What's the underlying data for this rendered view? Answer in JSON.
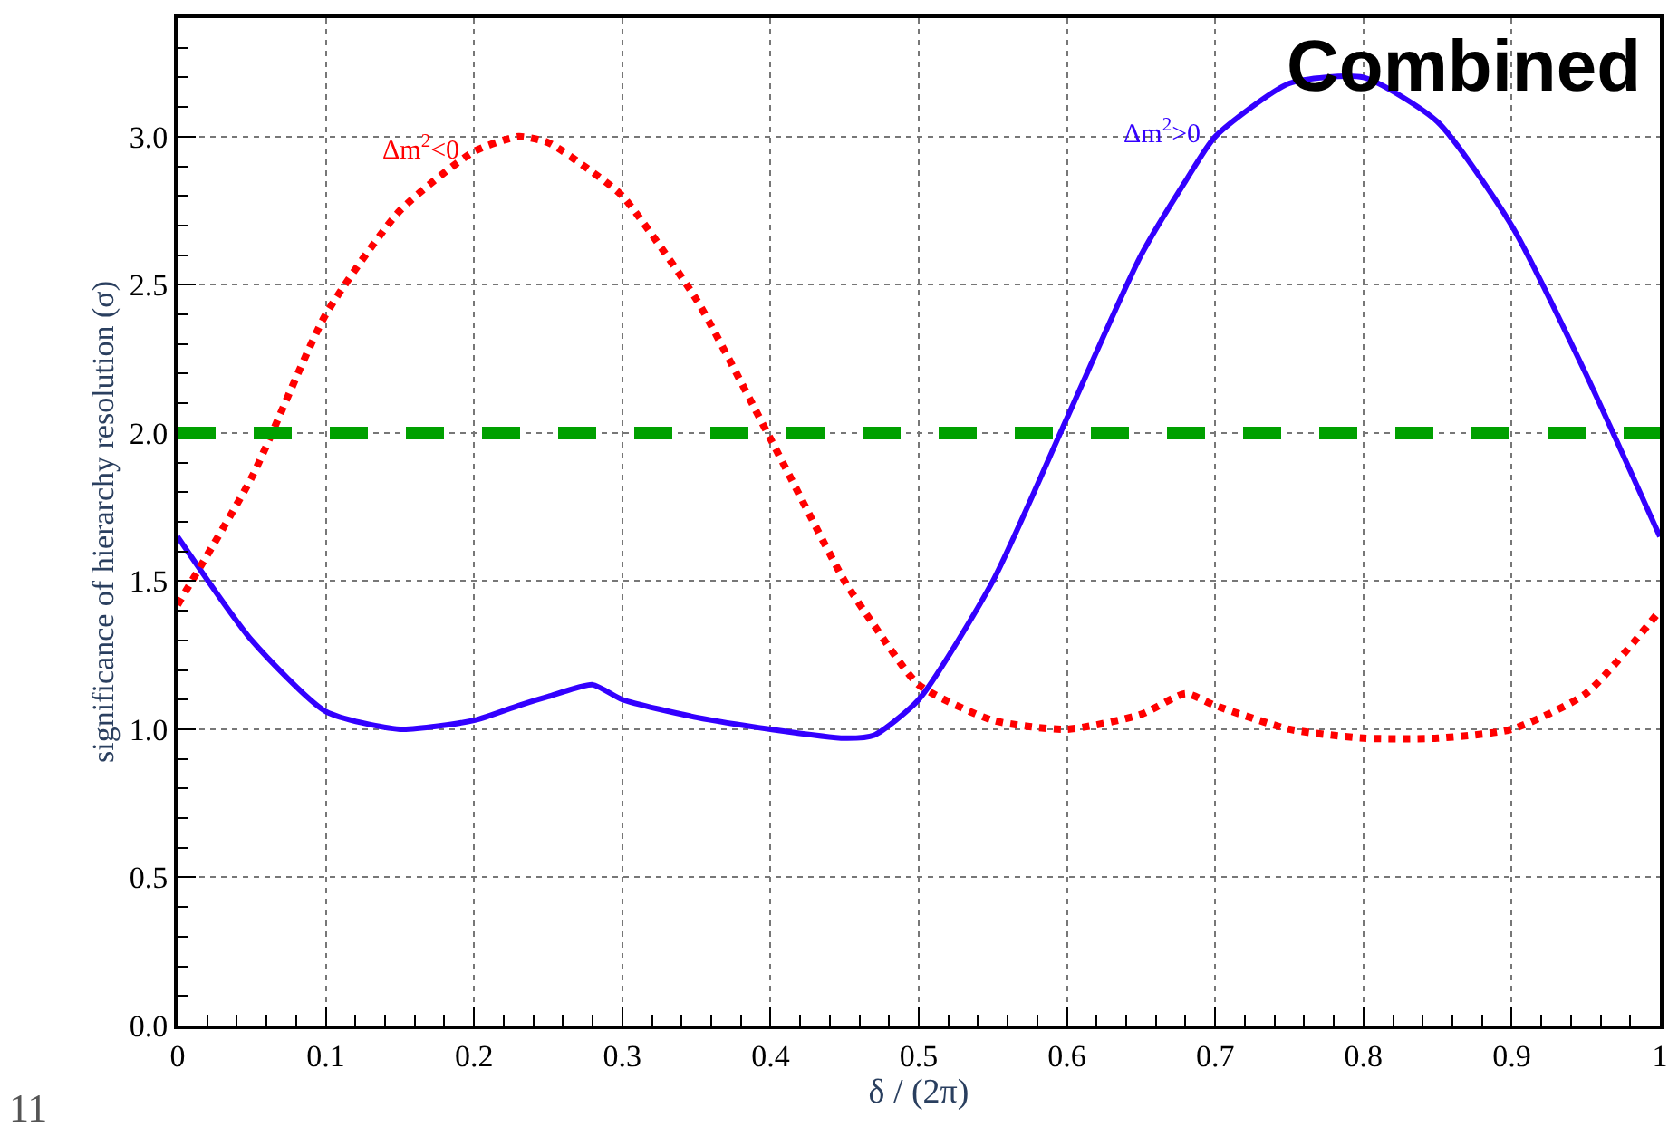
{
  "chart_data": {
    "type": "line",
    "xlabel": "δ / (2π)",
    "ylabel": "significance of hierarchy resolution (σ)",
    "x": [
      0,
      0.05,
      0.1,
      0.15,
      0.2,
      0.23,
      0.25,
      0.28,
      0.3,
      0.35,
      0.4,
      0.45,
      0.47,
      0.5,
      0.55,
      0.6,
      0.65,
      0.68,
      0.7,
      0.75,
      0.8,
      0.85,
      0.9,
      0.95,
      1.0
    ],
    "series": [
      {
        "name": "Δm$^{2}$>0",
        "color": "#3300ff",
        "line_style": "solid",
        "values": [
          1.65,
          1.3,
          1.06,
          1.0,
          1.03,
          1.08,
          1.11,
          1.15,
          1.1,
          1.04,
          1.0,
          0.97,
          0.98,
          1.1,
          1.5,
          2.05,
          2.6,
          2.85,
          3.0,
          3.18,
          3.2,
          3.05,
          2.7,
          2.2,
          1.65
        ]
      },
      {
        "name": "Δm$^{2}$<0",
        "color": "#ff0000",
        "line_style": "dotted",
        "values": [
          1.42,
          1.85,
          2.4,
          2.75,
          2.95,
          3.0,
          2.98,
          2.88,
          2.8,
          2.45,
          1.98,
          1.5,
          1.35,
          1.15,
          1.03,
          1.0,
          1.05,
          1.12,
          1.08,
          1.0,
          0.97,
          0.97,
          1.0,
          1.12,
          1.4
        ]
      }
    ],
    "ref_lines": [
      {
        "axis": "y",
        "value": 2.0,
        "color": "#00a000",
        "line_style": "dashed"
      }
    ],
    "annotations": [
      "Combined",
      "11"
    ],
    "xlim": [
      0,
      1
    ],
    "ylim": [
      0,
      3.4
    ],
    "xticks": [
      0,
      0.1,
      0.2,
      0.3,
      0.4,
      0.5,
      0.6,
      0.7,
      0.8,
      0.9,
      1
    ],
    "yticks": [
      {
        "value": 0,
        "label": "0.0"
      },
      0.5,
      {
        "value": 1,
        "label": "1.0"
      },
      1.5,
      {
        "value": 2,
        "label": "2.0"
      },
      2.5,
      {
        "value": 3,
        "label": "3.0"
      }
    ],
    "grid": true,
    "legend": false,
    "marker": "none"
  }
}
